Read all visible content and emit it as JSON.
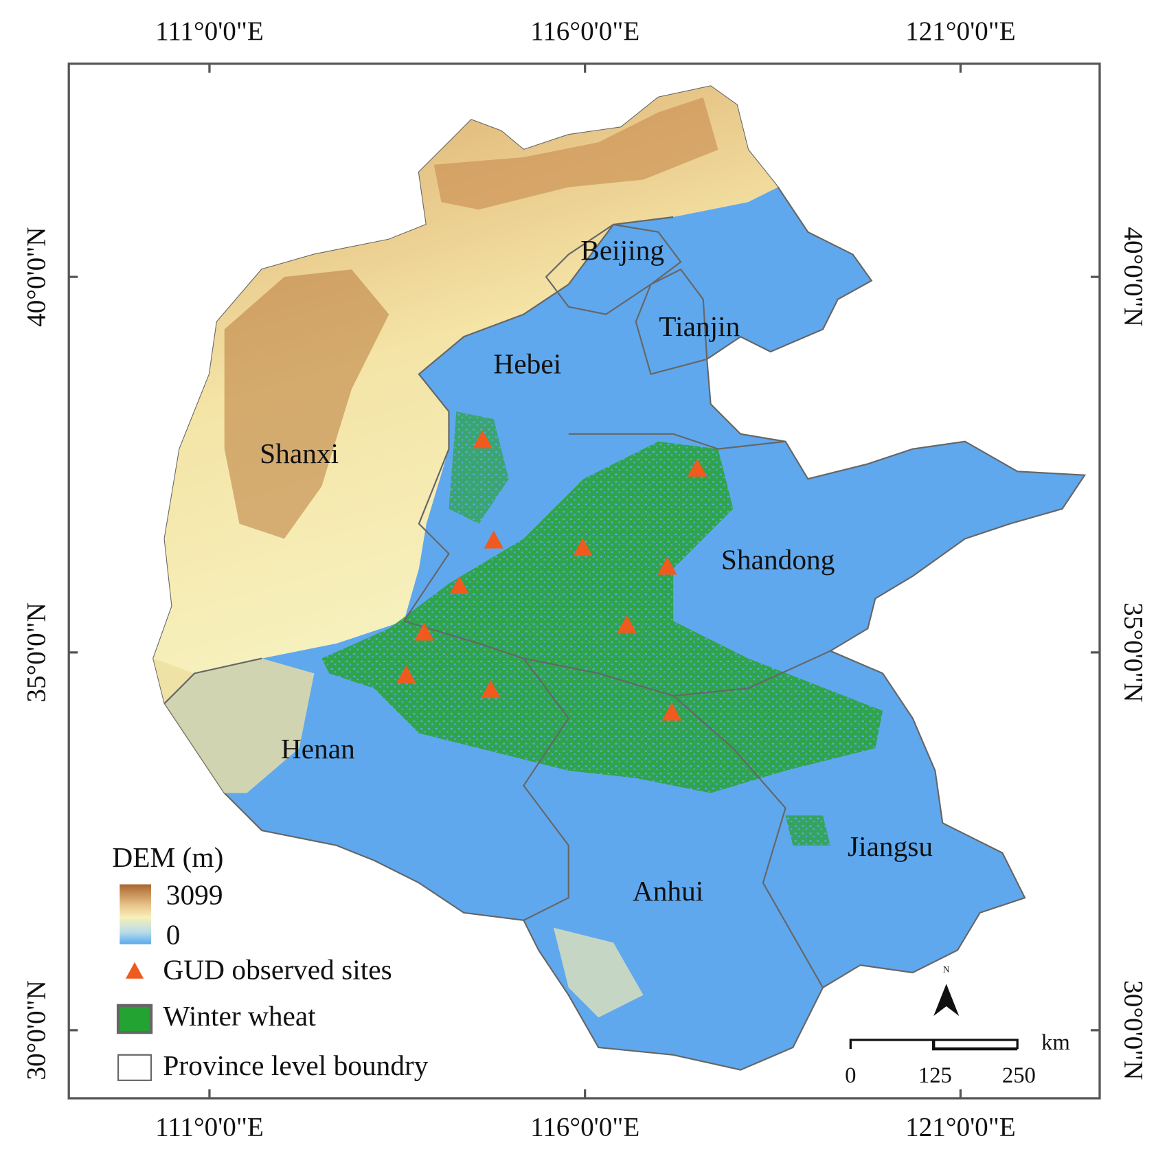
{
  "axes": {
    "top": [
      "111°0'0\"E",
      "116°0'0\"E",
      "121°0'0\"E"
    ],
    "bottom": [
      "111°0'0\"E",
      "116°0'0\"E",
      "121°0'0\"E"
    ],
    "left": [
      "40°0'0\"N",
      "35°0'0\"N",
      "30°0'0\"N"
    ],
    "right": [
      "40°0'0\"N",
      "35°0'0\"N",
      "30°0'0\"N"
    ]
  },
  "provinces": [
    "Beijing",
    "Tianjin",
    "Hebei",
    "Shanxi",
    "Shandong",
    "Henan",
    "Jiangsu",
    "Anhui"
  ],
  "legend": {
    "title": "DEM (m)",
    "max": "3099",
    "min": "0",
    "items": [
      "GUD observed sites",
      "Winter wheat",
      "Province level boundry"
    ]
  },
  "scale_bar": {
    "labels": [
      "0",
      "125",
      "250"
    ],
    "unit": "km"
  },
  "north_arrow": "N"
}
